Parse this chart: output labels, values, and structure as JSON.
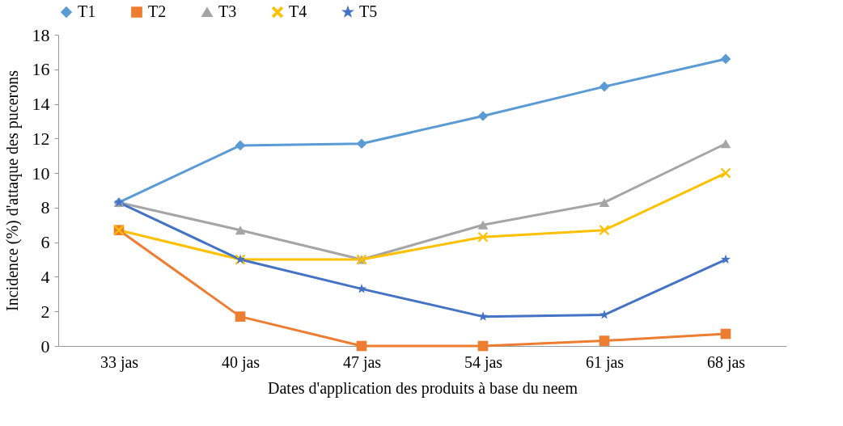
{
  "chart_data": {
    "type": "line",
    "xlabel": "Dates d'application  des produits à base du neem",
    "ylabel": "Incidence (%) d'attaque des pucerons",
    "categories": [
      "33 jas",
      "40 jas",
      "47 jas",
      "54 jas",
      "61 jas",
      "68 jas"
    ],
    "ylim": [
      0,
      18
    ],
    "yticks": [
      0,
      2,
      4,
      6,
      8,
      10,
      12,
      14,
      16,
      18
    ],
    "grid": false,
    "legend": "top",
    "series": [
      {
        "name": "T1",
        "color": "#5b9bd5",
        "marker": "diamond",
        "values": [
          8.3,
          11.6,
          11.7,
          13.3,
          15.0,
          16.6
        ]
      },
      {
        "name": "T2",
        "color": "#ed7d31",
        "marker": "square",
        "values": [
          6.7,
          1.7,
          0,
          0,
          0.3,
          0.7
        ]
      },
      {
        "name": "T3",
        "color": "#a5a5a5",
        "marker": "triangle",
        "values": [
          8.3,
          6.7,
          5.0,
          7.0,
          8.3,
          11.7
        ]
      },
      {
        "name": "T4",
        "color": "#ffc000",
        "marker": "cross",
        "values": [
          6.7,
          5.0,
          5.0,
          6.3,
          6.7,
          10.0
        ]
      },
      {
        "name": "T5",
        "color": "#4472c4",
        "marker": "star",
        "values": [
          8.3,
          5.0,
          3.3,
          1.7,
          1.8,
          5.0
        ]
      }
    ]
  }
}
